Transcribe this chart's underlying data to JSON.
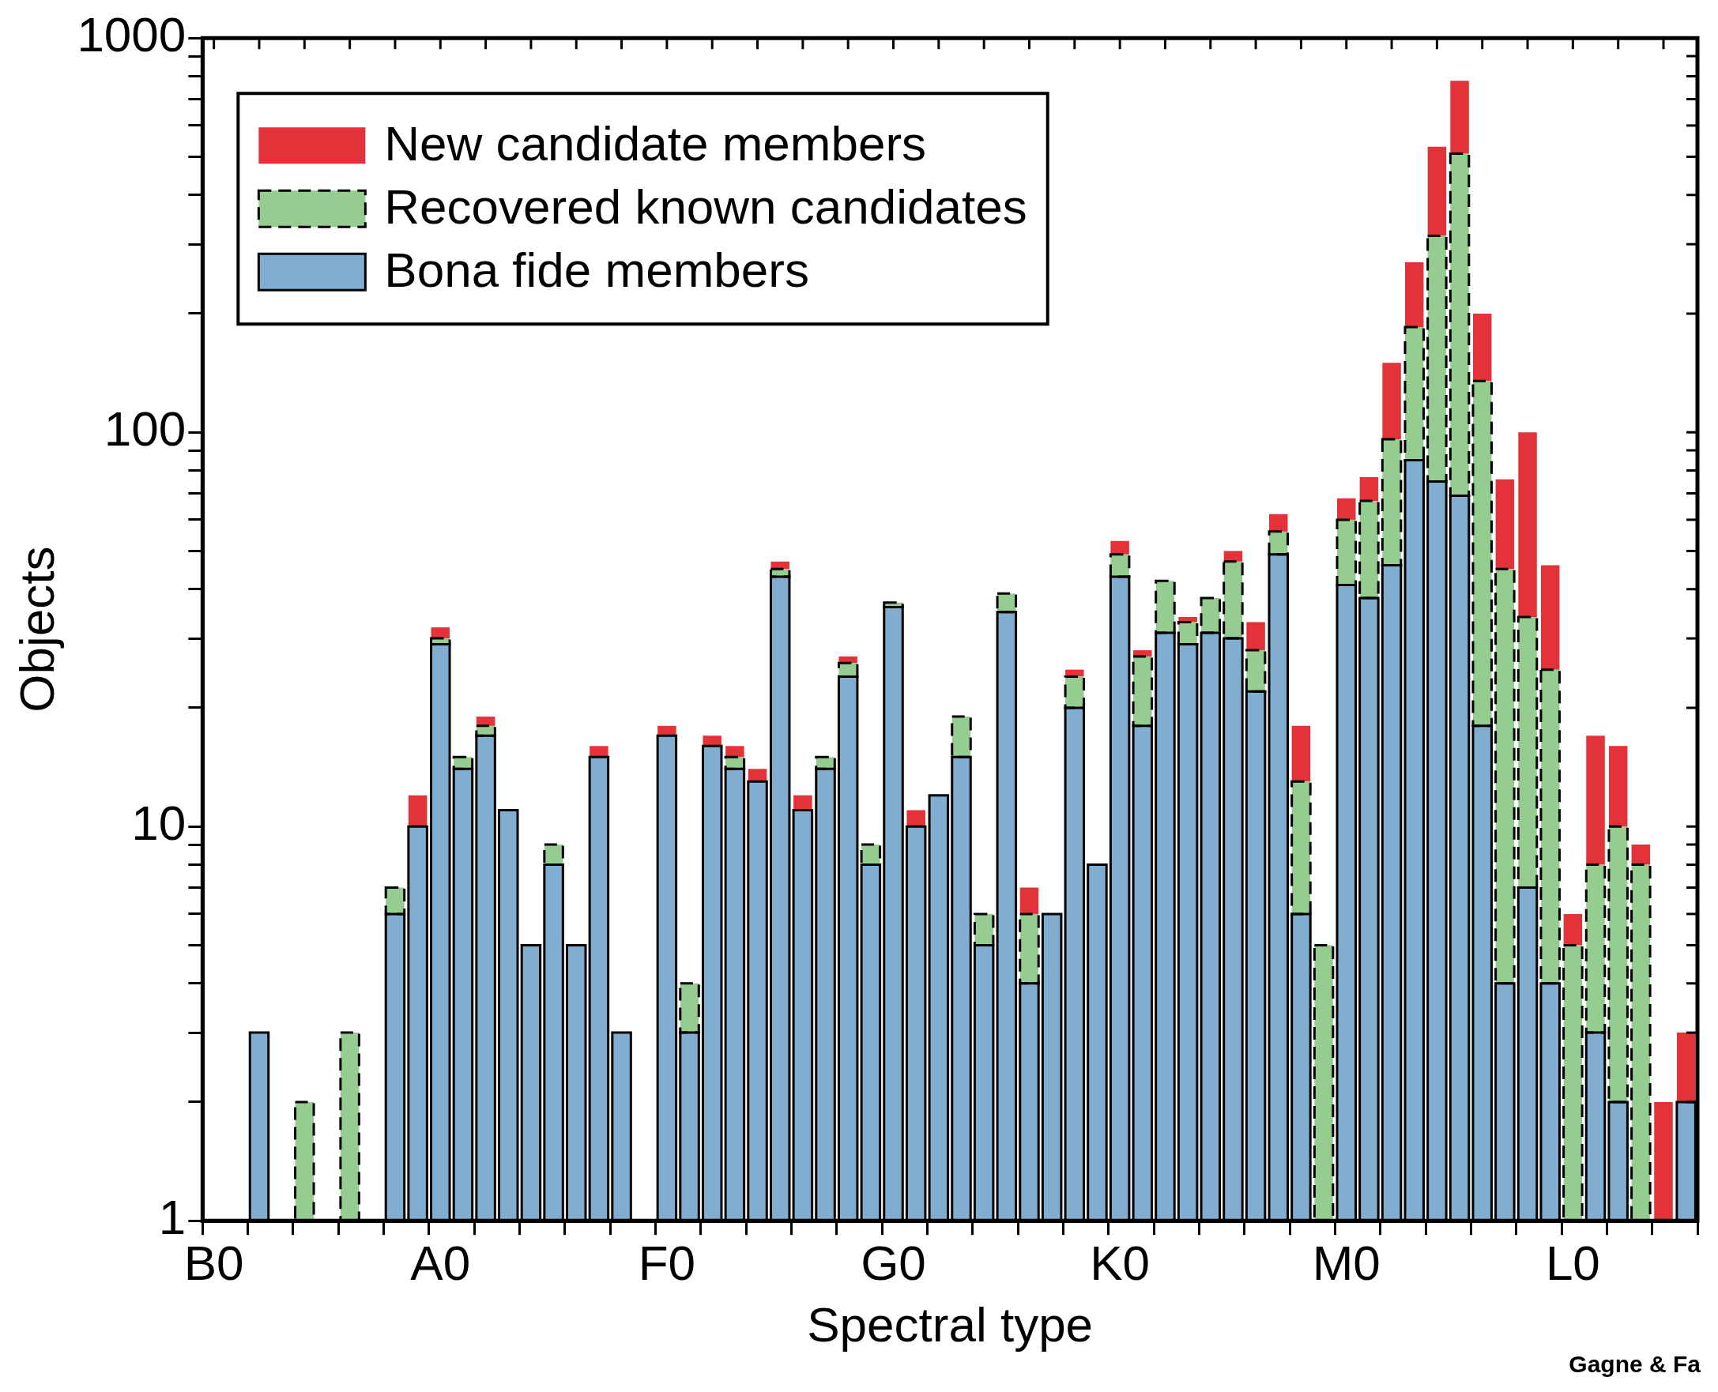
{
  "chart_data": {
    "type": "bar",
    "stacked": true,
    "log": "y",
    "grid": false,
    "legend": "top left",
    "xlabel": "Spectral type",
    "ylabel": "Objects",
    "annotations": [
      "Gagne & Fa"
    ],
    "categories": [
      "B0",
      null,
      null,
      null,
      null,
      null,
      null,
      null,
      null,
      null,
      "A0",
      null,
      null,
      null,
      null,
      null,
      null,
      null,
      null,
      null,
      "F0",
      null,
      null,
      null,
      null,
      null,
      null,
      null,
      null,
      null,
      "G0",
      null,
      null,
      null,
      null,
      null,
      null,
      null,
      null,
      null,
      "K0",
      null,
      null,
      null,
      null,
      null,
      null,
      null,
      null,
      null,
      "M0",
      null,
      null,
      null,
      null,
      null,
      null,
      null,
      null,
      null,
      "L0",
      null,
      null,
      null,
      null,
      null
    ],
    "ylim": [
      1,
      1000
    ],
    "yticks": [
      1,
      {
        "value": 2,
        "label": null
      },
      {
        "value": 3,
        "label": null
      },
      {
        "value": 4,
        "label": null
      },
      {
        "value": 5,
        "label": null
      },
      {
        "value": 6,
        "label": null
      },
      {
        "value": 7,
        "label": null
      },
      {
        "value": 8,
        "label": null
      },
      {
        "value": 9,
        "label": null
      },
      10,
      {
        "value": 20,
        "label": null
      },
      {
        "value": 30,
        "label": null
      },
      {
        "value": 40,
        "label": null
      },
      {
        "value": 50,
        "label": null
      },
      {
        "value": 60,
        "label": null
      },
      {
        "value": 70,
        "label": null
      },
      {
        "value": 80,
        "label": null
      },
      {
        "value": 90,
        "label": null
      },
      100,
      {
        "value": 200,
        "label": null
      },
      {
        "value": 300,
        "label": null
      },
      {
        "value": 400,
        "label": null
      },
      {
        "value": 500,
        "label": null
      },
      {
        "value": 600,
        "label": null
      },
      {
        "value": 700,
        "label": null
      },
      {
        "value": 800,
        "label": null
      },
      {
        "value": 900,
        "label": null
      },
      1000
    ],
    "series": [
      {
        "name": "Bona fide members",
        "color": "#80add0",
        "line_style": "solid",
        "values": [
          null,
          null,
          3,
          null,
          null,
          null,
          null,
          null,
          6,
          10,
          29,
          14,
          17,
          11,
          5,
          8,
          5,
          15,
          3,
          null,
          17,
          3,
          16,
          14,
          13,
          43,
          11,
          14,
          24,
          8,
          36,
          10,
          12,
          15,
          5,
          35,
          4,
          6,
          20,
          8,
          43,
          18,
          31,
          29,
          31,
          30,
          22,
          49,
          6,
          null,
          41,
          38,
          46,
          85,
          75,
          69,
          18,
          4,
          7,
          4,
          null,
          3,
          2,
          null,
          null,
          2
        ]
      },
      {
        "name": "Recovered known candidates",
        "color": "#95cc8f",
        "line_style": "dashed",
        "values": [
          null,
          null,
          null,
          null,
          2,
          null,
          3,
          null,
          1,
          null,
          1,
          1,
          1,
          null,
          null,
          1,
          null,
          null,
          null,
          null,
          null,
          1,
          null,
          1,
          null,
          2,
          null,
          1,
          2,
          1,
          1,
          null,
          null,
          4,
          1,
          4,
          2,
          null,
          4,
          null,
          6,
          9,
          11,
          4,
          7,
          17,
          6,
          7,
          7,
          5,
          19,
          29,
          50,
          100,
          240,
          440,
          117,
          41,
          27,
          21,
          5,
          5,
          8,
          8,
          null,
          null
        ]
      },
      {
        "name": "New candidate members",
        "color": "#e3323a",
        "values": [
          null,
          null,
          null,
          null,
          null,
          null,
          null,
          null,
          null,
          2,
          2,
          null,
          1,
          null,
          null,
          null,
          null,
          1,
          null,
          null,
          1,
          null,
          1,
          1,
          1,
          2,
          1,
          null,
          1,
          null,
          null,
          1,
          null,
          null,
          null,
          null,
          1,
          null,
          1,
          null,
          4,
          1,
          null,
          1,
          null,
          3,
          5,
          6,
          5,
          null,
          8,
          10,
          54,
          85,
          215,
          270,
          65,
          31,
          66,
          21,
          1,
          9,
          6,
          1,
          2,
          1
        ]
      }
    ]
  }
}
